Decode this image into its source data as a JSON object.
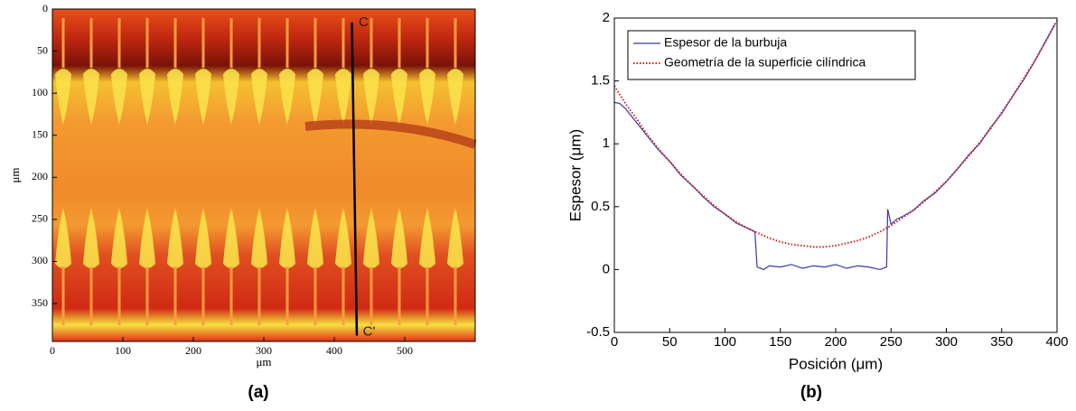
{
  "chart_data": [
    {
      "type": "image",
      "xlabel": "μm",
      "ylabel": "μm",
      "panel_label": "(a)",
      "xlim": [
        0,
        600
      ],
      "xticks": [
        0,
        100,
        200,
        300,
        400,
        500
      ],
      "ylim": [
        0,
        395
      ],
      "yticks": [
        0,
        50,
        100,
        150,
        200,
        250,
        300,
        350
      ],
      "yreverse": true,
      "cut_line": {
        "x": [
          425,
          432
        ],
        "y": [
          16,
          388
        ],
        "color": "#000000"
      },
      "annotations": [
        {
          "text": "C",
          "x": 432,
          "y": 16
        },
        {
          "text": "C'",
          "x": 438,
          "y": 384
        }
      ]
    },
    {
      "type": "line",
      "xlabel": "Posición (μm)",
      "ylabel": "Espesor  (μm)",
      "panel_label": "(b)",
      "xlim": [
        0,
        400
      ],
      "xticks": [
        0,
        50,
        100,
        150,
        200,
        250,
        300,
        350,
        400
      ],
      "ylim": [
        -0.5,
        2
      ],
      "yticks": [
        -0.5,
        0,
        0.5,
        1,
        1.5,
        2
      ],
      "legend": "upper left",
      "series": [
        {
          "name": "Espesor de la burbuja",
          "color": "#3838a8",
          "style": "solid",
          "x": [
            0,
            5,
            10,
            20,
            30,
            40,
            50,
            60,
            70,
            80,
            90,
            100,
            110,
            120,
            127,
            129,
            135,
            140,
            150,
            160,
            170,
            180,
            190,
            200,
            210,
            220,
            230,
            240,
            246,
            247,
            250,
            255,
            260,
            270,
            280,
            290,
            300,
            310,
            320,
            330,
            340,
            350,
            360,
            370,
            380,
            390,
            398
          ],
          "values": [
            1.33,
            1.32,
            1.28,
            1.17,
            1.06,
            0.95,
            0.86,
            0.75,
            0.67,
            0.58,
            0.5,
            0.44,
            0.37,
            0.33,
            0.3,
            0.02,
            0,
            0.03,
            0.02,
            0.04,
            0.01,
            0.03,
            0.02,
            0.04,
            0.01,
            0.03,
            0.02,
            0,
            0.02,
            0.48,
            0.36,
            0.4,
            0.42,
            0.47,
            0.55,
            0.61,
            0.7,
            0.8,
            0.91,
            1,
            1.13,
            1.24,
            1.38,
            1.51,
            1.66,
            1.82,
            1.95
          ]
        },
        {
          "name": "Geometría de la superficie cilíndrica",
          "color": "#cc2222",
          "style": "dotted",
          "x": [
            0,
            10,
            20,
            30,
            40,
            50,
            60,
            70,
            80,
            90,
            100,
            110,
            120,
            130,
            140,
            150,
            160,
            170,
            180,
            190,
            200,
            210,
            220,
            230,
            240,
            250,
            260,
            270,
            280,
            290,
            300,
            310,
            320,
            330,
            340,
            350,
            360,
            370,
            380,
            390,
            400
          ],
          "values": [
            1.46,
            1.32,
            1.2,
            1.07,
            0.96,
            0.86,
            0.76,
            0.67,
            0.59,
            0.51,
            0.44,
            0.38,
            0.33,
            0.29,
            0.25,
            0.22,
            0.2,
            0.19,
            0.18,
            0.18,
            0.19,
            0.21,
            0.23,
            0.26,
            0.3,
            0.35,
            0.41,
            0.47,
            0.54,
            0.62,
            0.7,
            0.8,
            0.9,
            1.01,
            1.12,
            1.25,
            1.38,
            1.52,
            1.66,
            1.82,
            1.98
          ]
        }
      ]
    }
  ]
}
